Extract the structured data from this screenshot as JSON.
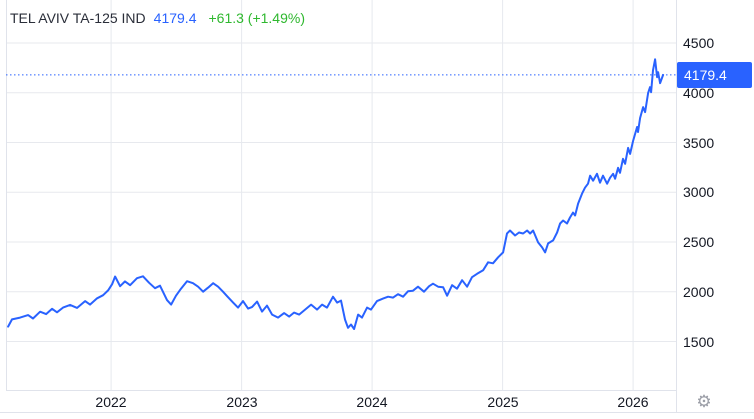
{
  "header": {
    "title": "TEL AVIV TA-125 IND",
    "last_value": "4179.4",
    "change": "+61.3 (+1.49%)"
  },
  "price_scale": {
    "labels": [
      "4500",
      "4000",
      "3500",
      "3000",
      "2500",
      "2000",
      "1500"
    ],
    "last_label": "4179.4"
  },
  "time_scale": {
    "labels": [
      "2022",
      "2023",
      "2024",
      "2025",
      "2026"
    ]
  },
  "icons": {
    "settings_glyph": "⚙"
  },
  "colors": {
    "accent": "#2962ff",
    "positive": "#2fb82f",
    "text": "#131722",
    "grid": "#e7e9ee",
    "border": "#e0e3eb",
    "badge_text": "#ffffff",
    "icon": "#9a9da6"
  },
  "chart_data": {
    "type": "line",
    "title": "TEL AVIV TA-125 IND",
    "last_value": 4179.4,
    "change": 61.3,
    "change_pct": 1.49,
    "x_ticks": [
      2022,
      2023,
      2024,
      2025,
      2026
    ],
    "y_ticks": [
      4500,
      4000,
      3500,
      3000,
      2500,
      2000,
      1500
    ],
    "xlim": [
      2021.195,
      2026.329
    ],
    "ylim": [
      1013,
      4932
    ],
    "grid": true,
    "legend_position": "none",
    "series": [
      {
        "name": "TA-125 Index",
        "points": [
          [
            2021.211,
            1650
          ],
          [
            2021.241,
            1722
          ],
          [
            2021.303,
            1741
          ],
          [
            2021.364,
            1766
          ],
          [
            2021.402,
            1731
          ],
          [
            2021.456,
            1800
          ],
          [
            2021.502,
            1776
          ],
          [
            2021.548,
            1829
          ],
          [
            2021.586,
            1794
          ],
          [
            2021.632,
            1841
          ],
          [
            2021.686,
            1868
          ],
          [
            2021.74,
            1838
          ],
          [
            2021.801,
            1906
          ],
          [
            2021.839,
            1871
          ],
          [
            2021.893,
            1934
          ],
          [
            2021.939,
            1966
          ],
          [
            2021.977,
            2014
          ],
          [
            2022.008,
            2076
          ],
          [
            2022.031,
            2154
          ],
          [
            2022.069,
            2056
          ],
          [
            2022.107,
            2104
          ],
          [
            2022.146,
            2066
          ],
          [
            2022.199,
            2136
          ],
          [
            2022.245,
            2156
          ],
          [
            2022.291,
            2091
          ],
          [
            2022.337,
            2036
          ],
          [
            2022.375,
            2061
          ],
          [
            2022.429,
            1916
          ],
          [
            2022.46,
            1871
          ],
          [
            2022.498,
            1961
          ],
          [
            2022.536,
            2031
          ],
          [
            2022.582,
            2106
          ],
          [
            2022.628,
            2086
          ],
          [
            2022.667,
            2051
          ],
          [
            2022.705,
            2001
          ],
          [
            2022.743,
            2041
          ],
          [
            2022.782,
            2086
          ],
          [
            2022.82,
            2051
          ],
          [
            2022.858,
            2001
          ],
          [
            2022.889,
            1956
          ],
          [
            2022.935,
            1891
          ],
          [
            2022.973,
            1841
          ],
          [
            2023.011,
            1906
          ],
          [
            2023.05,
            1831
          ],
          [
            2023.08,
            1846
          ],
          [
            2023.119,
            1901
          ],
          [
            2023.157,
            1801
          ],
          [
            2023.195,
            1861
          ],
          [
            2023.234,
            1771
          ],
          [
            2023.28,
            1741
          ],
          [
            2023.326,
            1786
          ],
          [
            2023.364,
            1751
          ],
          [
            2023.402,
            1791
          ],
          [
            2023.441,
            1771
          ],
          [
            2023.487,
            1821
          ],
          [
            2023.533,
            1871
          ],
          [
            2023.579,
            1821
          ],
          [
            2023.617,
            1871
          ],
          [
            2023.655,
            1841
          ],
          [
            2023.701,
            1951
          ],
          [
            2023.732,
            1891
          ],
          [
            2023.762,
            1911
          ],
          [
            2023.793,
            1721
          ],
          [
            2023.816,
            1638
          ],
          [
            2023.839,
            1671
          ],
          [
            2023.862,
            1626
          ],
          [
            2023.893,
            1771
          ],
          [
            2023.923,
            1741
          ],
          [
            2023.962,
            1841
          ],
          [
            2023.992,
            1821
          ],
          [
            2024.038,
            1906
          ],
          [
            2024.084,
            1931
          ],
          [
            2024.123,
            1951
          ],
          [
            2024.161,
            1941
          ],
          [
            2024.199,
            1976
          ],
          [
            2024.238,
            1951
          ],
          [
            2024.276,
            2006
          ],
          [
            2024.314,
            2011
          ],
          [
            2024.352,
            2051
          ],
          [
            2024.398,
            2001
          ],
          [
            2024.437,
            2056
          ],
          [
            2024.467,
            2081
          ],
          [
            2024.506,
            2051
          ],
          [
            2024.544,
            2046
          ],
          [
            2024.575,
            1961
          ],
          [
            2024.613,
            2066
          ],
          [
            2024.651,
            2031
          ],
          [
            2024.69,
            2116
          ],
          [
            2024.728,
            2051
          ],
          [
            2024.766,
            2146
          ],
          [
            2024.805,
            2181
          ],
          [
            2024.851,
            2216
          ],
          [
            2024.889,
            2296
          ],
          [
            2024.927,
            2286
          ],
          [
            2024.966,
            2346
          ],
          [
            2025.004,
            2396
          ],
          [
            2025.034,
            2586
          ],
          [
            2025.057,
            2616
          ],
          [
            2025.096,
            2566
          ],
          [
            2025.126,
            2596
          ],
          [
            2025.157,
            2586
          ],
          [
            2025.188,
            2616
          ],
          [
            2025.211,
            2586
          ],
          [
            2025.234,
            2616
          ],
          [
            2025.272,
            2496
          ],
          [
            2025.303,
            2446
          ],
          [
            2025.326,
            2396
          ],
          [
            2025.349,
            2486
          ],
          [
            2025.387,
            2516
          ],
          [
            2025.418,
            2596
          ],
          [
            2025.441,
            2686
          ],
          [
            2025.464,
            2716
          ],
          [
            2025.494,
            2686
          ],
          [
            2025.517,
            2746
          ],
          [
            2025.54,
            2796
          ],
          [
            2025.556,
            2766
          ],
          [
            2025.579,
            2886
          ],
          [
            2025.609,
            2986
          ],
          [
            2025.632,
            3046
          ],
          [
            2025.655,
            3086
          ],
          [
            2025.671,
            3166
          ],
          [
            2025.694,
            3116
          ],
          [
            2025.724,
            3186
          ],
          [
            2025.747,
            3096
          ],
          [
            2025.77,
            3166
          ],
          [
            2025.801,
            3086
          ],
          [
            2025.824,
            3146
          ],
          [
            2025.847,
            3186
          ],
          [
            2025.862,
            3136
          ],
          [
            2025.885,
            3246
          ],
          [
            2025.9,
            3196
          ],
          [
            2025.923,
            3336
          ],
          [
            2025.939,
            3286
          ],
          [
            2025.962,
            3446
          ],
          [
            2025.977,
            3386
          ],
          [
            2026.0,
            3516
          ],
          [
            2026.031,
            3656
          ],
          [
            2026.038,
            3606
          ],
          [
            2026.054,
            3746
          ],
          [
            2026.077,
            3856
          ],
          [
            2026.092,
            3806
          ],
          [
            2026.107,
            3926
          ],
          [
            2026.115,
            3996
          ],
          [
            2026.13,
            4056
          ],
          [
            2026.138,
            4006
          ],
          [
            2026.153,
            4226
          ],
          [
            2026.169,
            4336
          ],
          [
            2026.184,
            4156
          ],
          [
            2026.192,
            4206
          ],
          [
            2026.207,
            4096
          ],
          [
            2026.23,
            4179.4
          ]
        ]
      }
    ]
  }
}
